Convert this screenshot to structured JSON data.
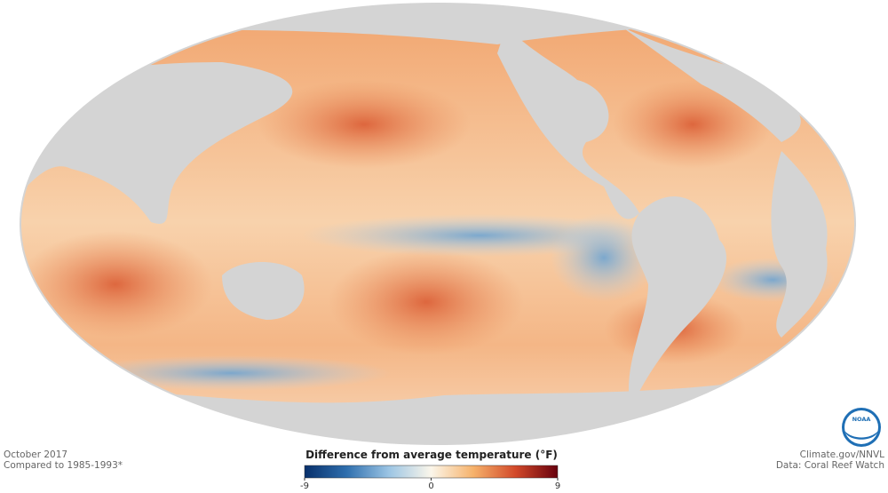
{
  "map": {
    "date": "October 2017",
    "baseline": "Compared to 1985-1993*",
    "legend": {
      "title": "Difference from average temperature (°F)",
      "ticks": [
        -9,
        0,
        9
      ],
      "colors": [
        "#08306b",
        "#2f6fae",
        "#9cc5e4",
        "#fbf6ea",
        "#f6b26b",
        "#d2492a",
        "#67000d"
      ]
    },
    "credit": "Climate.gov/NNVL",
    "source": "Data: Coral Reef Watch",
    "logo": "NOAA"
  }
}
